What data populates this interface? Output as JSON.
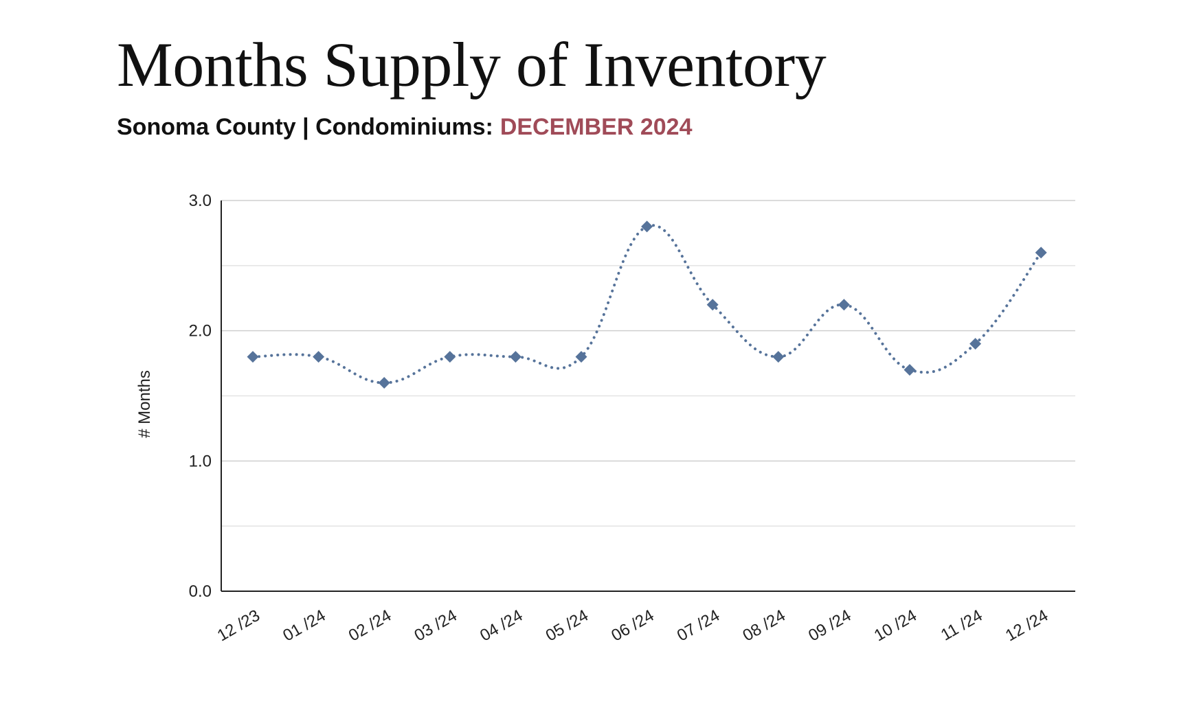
{
  "title": "Months Supply of Inventory",
  "subtitle": {
    "prefix": "Sonoma County | Condominiums:",
    "highlight": "DECEMBER 2024"
  },
  "colors": {
    "series": "#56739a",
    "highlight": "#a04b58",
    "grid": "#d4d4d4",
    "axis": "#222222"
  },
  "chart_data": {
    "type": "line",
    "title": "",
    "xlabel": "",
    "ylabel": "# Months",
    "ylim": [
      0,
      3
    ],
    "yticks": [
      "0.0",
      "1.0",
      "2.0",
      "3.0"
    ],
    "grid": true,
    "line_style": "dotted, smoothed",
    "marker": "diamond",
    "categories": [
      "12 /23",
      "01 /24",
      "02 /24",
      "03 /24",
      "04 /24",
      "05 /24",
      "06 /24",
      "07 /24",
      "08 /24",
      "09 /24",
      "10 /24",
      "11 /24",
      "12 /24"
    ],
    "series": [
      {
        "values": [
          1.8,
          1.8,
          1.6,
          1.8,
          1.8,
          1.8,
          2.8,
          2.2,
          1.8,
          2.2,
          1.7,
          1.9,
          2.6
        ]
      }
    ]
  }
}
